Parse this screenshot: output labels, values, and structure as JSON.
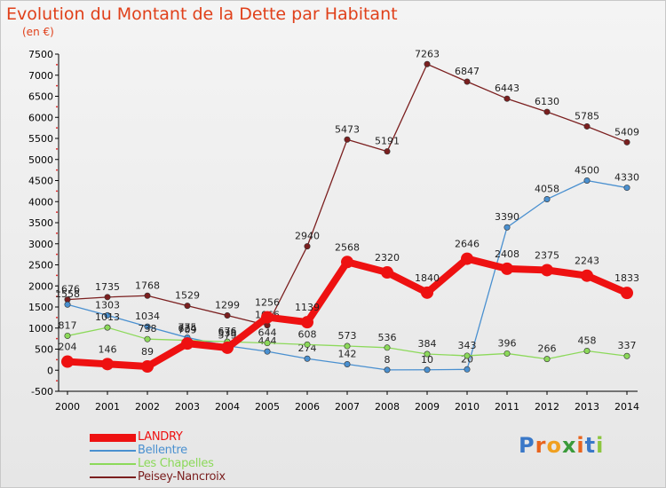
{
  "title": "Evolution du Montant de la Dette par Habitant",
  "unit": "(en €)",
  "brand": "Proxiti",
  "chart_data": {
    "type": "line",
    "x": [
      2000,
      2001,
      2002,
      2003,
      2004,
      2005,
      2006,
      2007,
      2008,
      2009,
      2010,
      2011,
      2012,
      2013,
      2014
    ],
    "ylim": [
      -500,
      7500
    ],
    "yticks": [
      -500,
      0,
      500,
      1000,
      1500,
      2000,
      2500,
      3000,
      3500,
      4000,
      4500,
      5000,
      5500,
      6000,
      6500,
      7000,
      7500
    ],
    "grid": false,
    "legend_position": "bottom-left",
    "series": [
      {
        "name": "Peisey-Nancroix",
        "color": "#7b1f1f",
        "values": [
          1676,
          1735,
          1768,
          1529,
          1299,
          1066,
          2940,
          5473,
          5191,
          7263,
          6847,
          6443,
          6130,
          5785,
          5409
        ]
      },
      {
        "name": "Bellentre",
        "color": "#4a90d0",
        "values": [
          1558,
          1303,
          1034,
          775,
          579,
          444,
          274,
          142,
          8,
          10,
          20,
          3390,
          4058,
          4500,
          4330
        ]
      },
      {
        "name": "Les Chapelles",
        "color": "#8cd95a",
        "values": [
          817,
          1013,
          738,
          709,
          676,
          644,
          608,
          573,
          536,
          384,
          343,
          396,
          266,
          458,
          337
        ]
      },
      {
        "name": "LANDRY",
        "color": "#ee1111",
        "values": [
          204,
          146,
          89,
          634,
          533,
          1256,
          1139,
          2568,
          2320,
          1840,
          2646,
          2408,
          2375,
          2243,
          1833
        ]
      }
    ],
    "legend_order": [
      "LANDRY",
      "Bellentre",
      "Les Chapelles",
      "Peisey-Nancroix"
    ]
  }
}
